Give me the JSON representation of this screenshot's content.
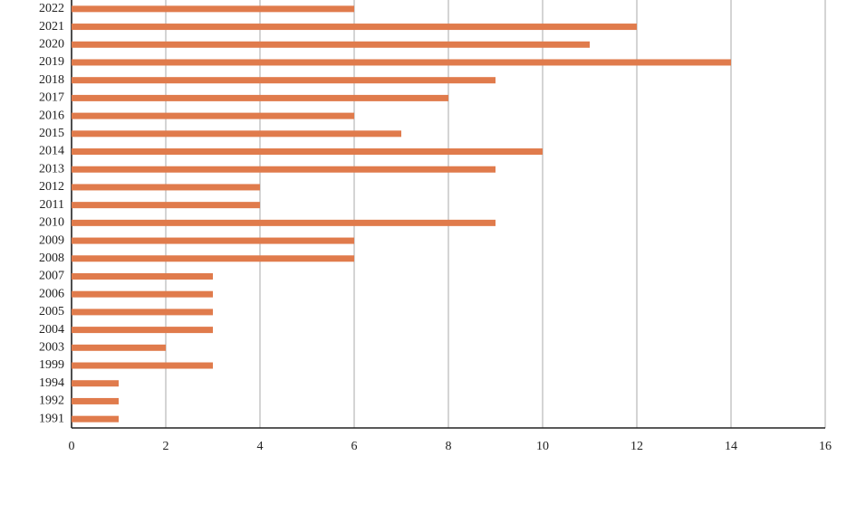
{
  "chart_data": {
    "type": "hbar",
    "categories": [
      "2022",
      "2021",
      "2020",
      "2019",
      "2018",
      "2017",
      "2016",
      "2015",
      "2014",
      "2013",
      "2012",
      "2011",
      "2010",
      "2009",
      "2008",
      "2007",
      "2006",
      "2005",
      "2004",
      "2003",
      "1999",
      "1994",
      "1992",
      "1991"
    ],
    "values": [
      6,
      12,
      11,
      14,
      9,
      8,
      6,
      7,
      10,
      9,
      4,
      4,
      9,
      6,
      6,
      3,
      3,
      3,
      3,
      2,
      3,
      1,
      1,
      1
    ],
    "color": "#e07b4c",
    "xlim": [
      0,
      16
    ],
    "xticks": [
      0,
      2,
      4,
      6,
      8,
      10,
      12,
      14,
      16
    ],
    "grid": true
  }
}
